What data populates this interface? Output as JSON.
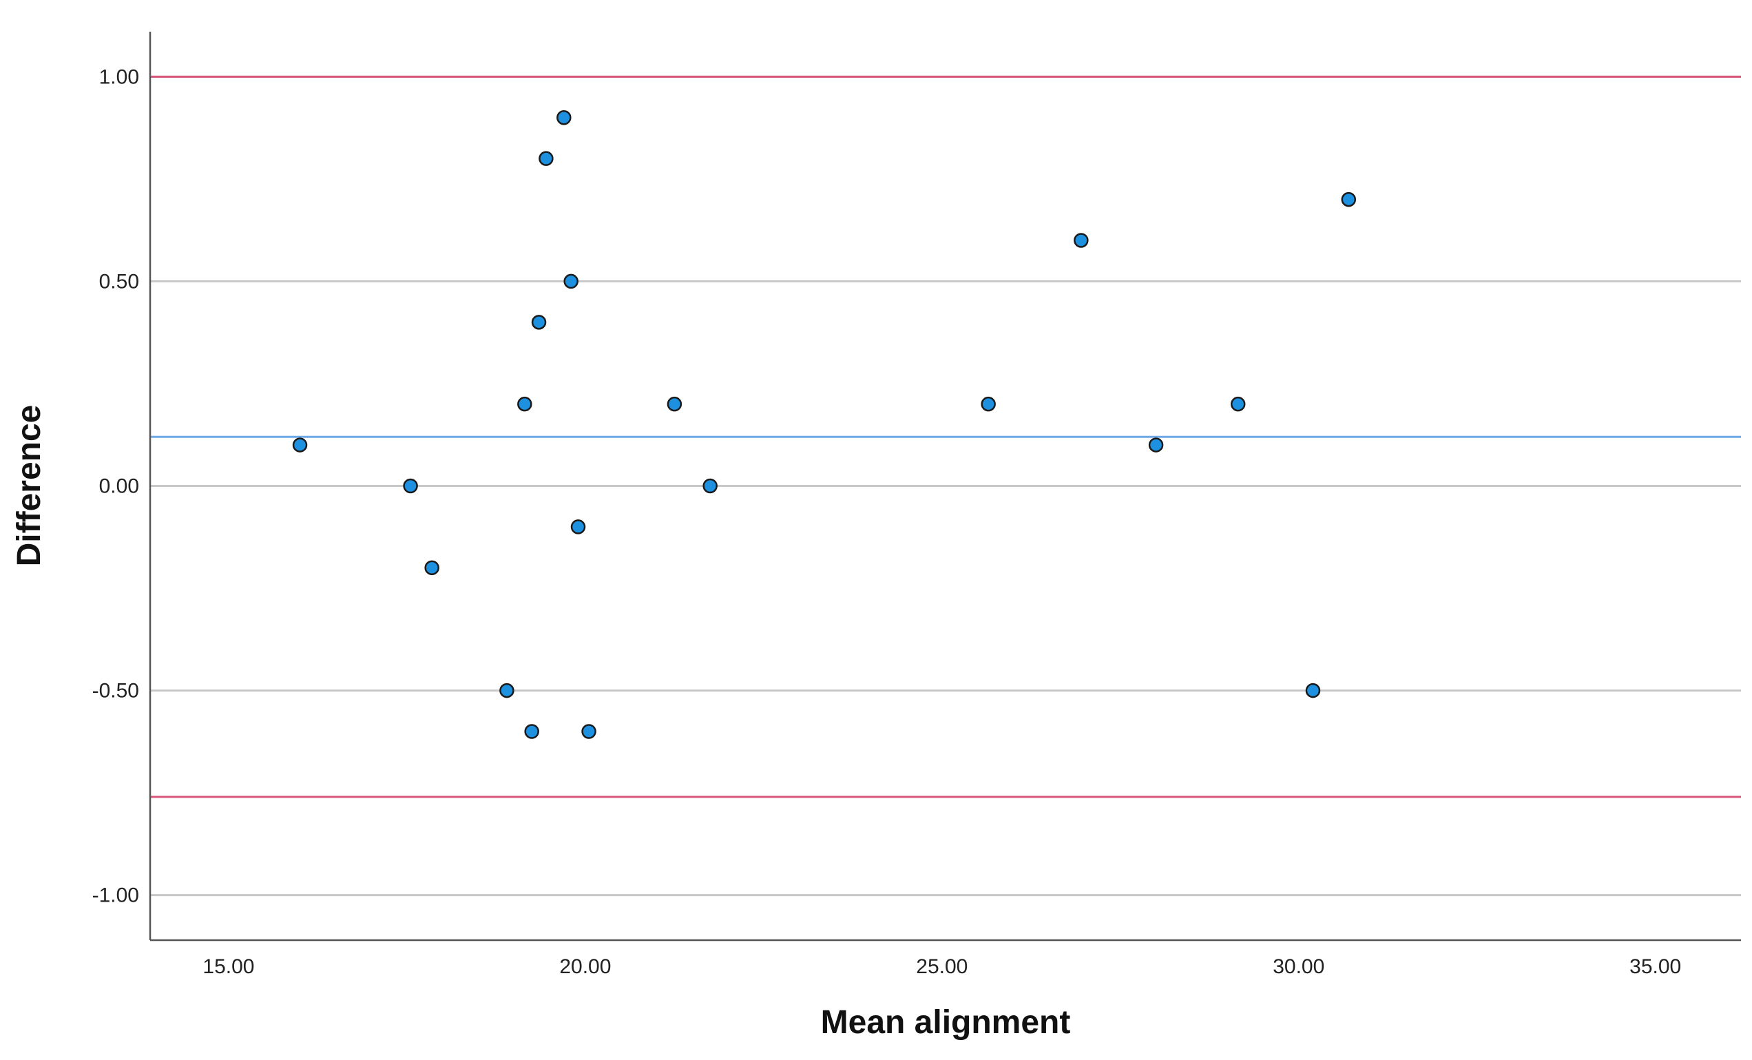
{
  "chart_data": {
    "type": "scatter",
    "title": "",
    "xlabel": "Mean alignment",
    "ylabel": "Difference",
    "xlim": [
      13.9,
      36.2
    ],
    "ylim": [
      -1.11,
      1.11
    ],
    "x_ticks": [
      15,
      20,
      25,
      30,
      35
    ],
    "x_tick_labels": [
      "15.00",
      "20.00",
      "25.00",
      "30.00",
      "35.00"
    ],
    "y_ticks": [
      -1,
      -0.5,
      0,
      0.5,
      1
    ],
    "y_tick_labels": [
      "-1.00",
      "-0.50",
      "0.00",
      "0.50",
      "1.00"
    ],
    "grid": true,
    "reference_lines": [
      {
        "value": 1.0,
        "color": "#d9577a"
      },
      {
        "value": 0.12,
        "color": "#6fa8e6"
      },
      {
        "value": -0.76,
        "color": "#d9577a"
      }
    ],
    "series": [
      {
        "color": "#1e90e0",
        "points": [
          {
            "x": 16.0,
            "y": 0.1
          },
          {
            "x": 17.55,
            "y": 0.0
          },
          {
            "x": 17.85,
            "y": -0.2
          },
          {
            "x": 18.9,
            "y": -0.5
          },
          {
            "x": 19.15,
            "y": 0.2
          },
          {
            "x": 19.25,
            "y": -0.6
          },
          {
            "x": 19.35,
            "y": 0.4
          },
          {
            "x": 19.45,
            "y": 0.8
          },
          {
            "x": 19.7,
            "y": 0.9
          },
          {
            "x": 19.8,
            "y": 0.5
          },
          {
            "x": 19.9,
            "y": -0.1
          },
          {
            "x": 20.05,
            "y": -0.6
          },
          {
            "x": 21.25,
            "y": 0.2
          },
          {
            "x": 21.75,
            "y": 0.0
          },
          {
            "x": 25.65,
            "y": 0.2
          },
          {
            "x": 26.95,
            "y": 0.6
          },
          {
            "x": 28.0,
            "y": 0.1
          },
          {
            "x": 29.15,
            "y": 0.2
          },
          {
            "x": 30.2,
            "y": -0.5
          },
          {
            "x": 30.7,
            "y": 0.7
          }
        ]
      }
    ]
  }
}
